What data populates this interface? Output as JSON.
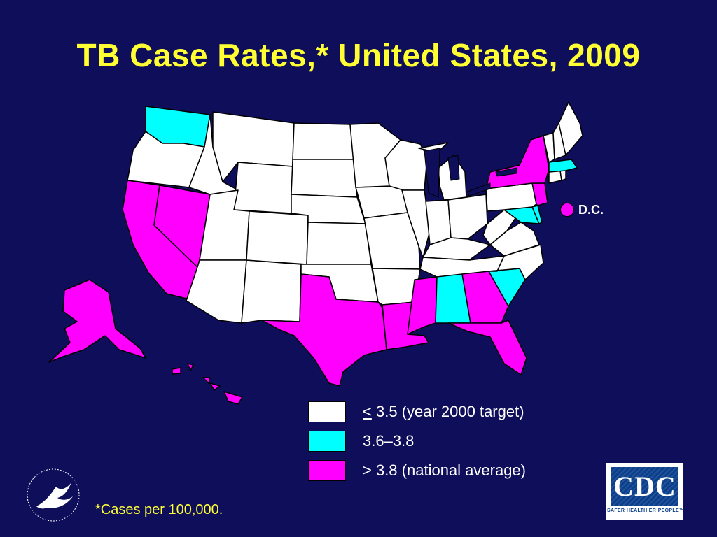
{
  "title": "TB Case Rates,* United States, 2009",
  "colors": {
    "background": "#0e0e5a",
    "title": "#ffff33",
    "low": "#ffffff",
    "mid": "#00ffff",
    "high": "#ff00ff"
  },
  "legend": [
    {
      "key": "low",
      "prefix": "<",
      "text": " 3.5 (year 2000 target)"
    },
    {
      "key": "mid",
      "prefix": "",
      "text": "3.6–3.8"
    },
    {
      "key": "high",
      "prefix": "",
      "text": "> 3.8 (national average)"
    }
  ],
  "dc": {
    "label": "D.C.",
    "category": "high"
  },
  "footnote": "*Cases per 100,000.",
  "logos": {
    "cdc_text": "CDC",
    "cdc_tagline": "SAFER·HEALTHIER·PEOPLE™",
    "hhs_seal": "hhs-seal-icon"
  },
  "states": {
    "WA": "mid",
    "OR": "low",
    "CA": "high",
    "NV": "high",
    "ID": "low",
    "MT": "low",
    "WY": "low",
    "UT": "low",
    "AZ": "low",
    "NM": "low",
    "CO": "low",
    "ND": "low",
    "SD": "low",
    "NE": "low",
    "KS": "low",
    "OK": "low",
    "TX": "high",
    "MN": "low",
    "IA": "low",
    "MO": "low",
    "AR": "low",
    "LA": "high",
    "WI": "low",
    "IL": "low",
    "MI": "low",
    "IN": "low",
    "OH": "low",
    "KY": "low",
    "TN": "low",
    "MS": "high",
    "AL": "mid",
    "GA": "high",
    "FL": "high",
    "SC": "mid",
    "NC": "low",
    "VA": "low",
    "WV": "low",
    "MD": "mid",
    "DE": "mid",
    "PA": "low",
    "NJ": "high",
    "NY": "high",
    "CT": "low",
    "RI": "low",
    "MA": "mid",
    "VT": "low",
    "NH": "low",
    "ME": "low",
    "AK": "high",
    "HI": "high"
  }
}
